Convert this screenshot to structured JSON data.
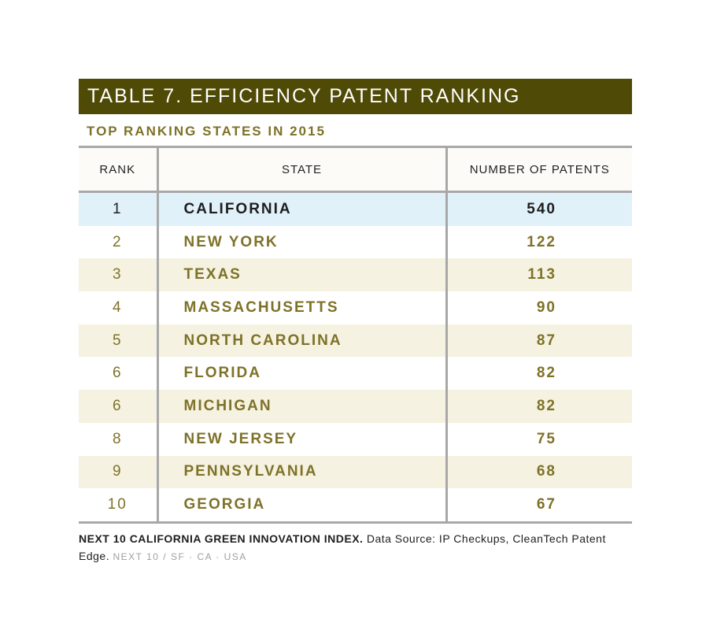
{
  "chart_data": {
    "type": "table",
    "title": "TABLE 7. EFFICIENCY PATENT RANKING",
    "subtitle": "TOP RANKING STATES IN 2015",
    "columns": [
      "RANK",
      "STATE",
      "NUMBER OF PATENTS"
    ],
    "rows": [
      {
        "rank": "1",
        "state": "CALIFORNIA",
        "patents": "540"
      },
      {
        "rank": "2",
        "state": "NEW YORK",
        "patents": "122"
      },
      {
        "rank": "3",
        "state": "TEXAS",
        "patents": "113"
      },
      {
        "rank": "4",
        "state": "MASSACHUSETTS",
        "patents": "90"
      },
      {
        "rank": "5",
        "state": "NORTH CAROLINA",
        "patents": "87"
      },
      {
        "rank": "6",
        "state": "FLORIDA",
        "patents": "82"
      },
      {
        "rank": "6",
        "state": "MICHIGAN",
        "patents": "82"
      },
      {
        "rank": "8",
        "state": "NEW JERSEY",
        "patents": "75"
      },
      {
        "rank": "9",
        "state": "PENNSYLVANIA",
        "patents": "68"
      },
      {
        "rank": "10",
        "state": "GEORGIA",
        "patents": "67"
      }
    ],
    "highlight_row": 0
  },
  "footnote": {
    "bold": "NEXT 10 CALIFORNIA GREEN INNOVATION INDEX.",
    "source": " Data Source: IP Checkups, CleanTech Patent Edge.",
    "org": "NEXT 10 / SF · CA · USA"
  },
  "colors": {
    "title_bar": "#4f4a06",
    "olive_text": "#7e7228",
    "stripe": "#f5f2e1",
    "highlight": "#e1f1fa",
    "rule": "#a8a8a8"
  }
}
